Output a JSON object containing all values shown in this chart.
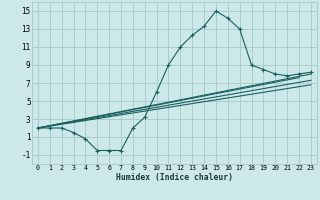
{
  "xlabel": "Humidex (Indice chaleur)",
  "bg_color": "#cce8e8",
  "grid_color": "#aacccc",
  "line_color": "#1a6060",
  "xlim": [
    -0.5,
    23.5
  ],
  "ylim": [
    -2.0,
    16.0
  ],
  "xticks": [
    0,
    1,
    2,
    3,
    4,
    5,
    6,
    7,
    8,
    9,
    10,
    11,
    12,
    13,
    14,
    15,
    16,
    17,
    18,
    19,
    20,
    21,
    22,
    23
  ],
  "yticks": [
    -1,
    1,
    3,
    5,
    7,
    9,
    11,
    13,
    15
  ],
  "main_x": [
    0,
    1,
    2,
    3,
    4,
    5,
    6,
    7,
    8,
    9,
    10,
    11,
    12,
    13,
    14,
    15,
    16,
    17,
    18,
    19,
    20,
    21,
    22,
    23
  ],
  "main_y": [
    2.0,
    2.0,
    2.0,
    1.5,
    0.8,
    -0.5,
    -0.5,
    -0.5,
    2.0,
    3.2,
    6.0,
    9.0,
    11.0,
    12.3,
    13.3,
    15.0,
    14.2,
    13.0,
    9.0,
    8.5,
    8.0,
    7.8,
    8.0,
    8.2
  ],
  "straight_lines": [
    [
      0,
      2.0,
      23,
      8.0
    ],
    [
      0,
      2.0,
      23,
      7.3
    ],
    [
      0,
      2.0,
      23,
      6.8
    ],
    [
      0,
      2.0,
      22,
      7.6
    ]
  ]
}
